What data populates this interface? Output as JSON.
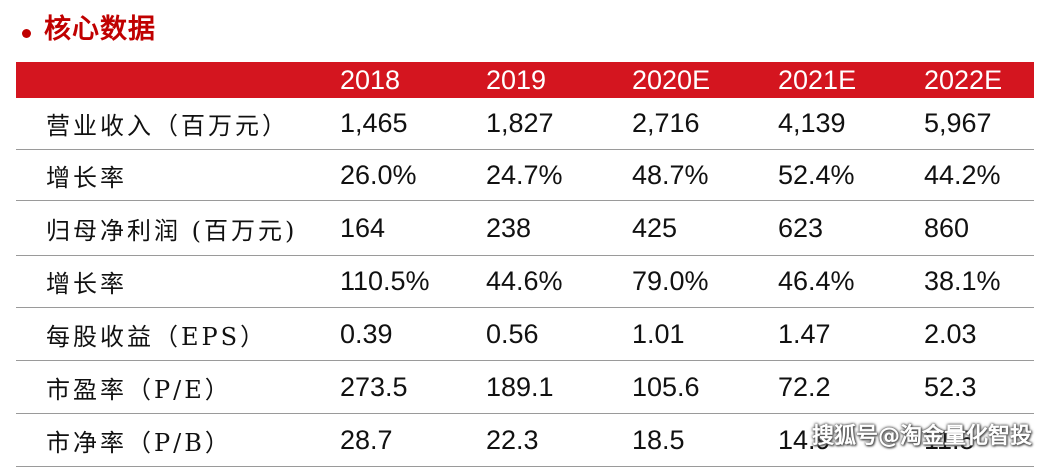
{
  "title": "核心数据",
  "table": {
    "headers": [
      "2018",
      "2019",
      "2020E",
      "2021E",
      "2022E"
    ],
    "rows": [
      {
        "label": "营业收入（百万元）",
        "values": [
          "1,465",
          "1,827",
          "2,716",
          "4,139",
          "5,967"
        ]
      },
      {
        "label": "增长率",
        "values": [
          "26.0%",
          "24.7%",
          "48.7%",
          "52.4%",
          "44.2%"
        ]
      },
      {
        "label": "归母净利润 (百万元)",
        "values": [
          "164",
          "238",
          "425",
          "623",
          "860"
        ]
      },
      {
        "label": "增长率",
        "values": [
          "110.5%",
          "44.6%",
          "79.0%",
          "46.4%",
          "38.1%"
        ]
      },
      {
        "label": "每股收益（EPS）",
        "values": [
          "0.39",
          "0.56",
          "1.01",
          "1.47",
          "2.03"
        ]
      },
      {
        "label": "市盈率（P/E）",
        "values": [
          "273.5",
          "189.1",
          "105.6",
          "72.2",
          "52.3"
        ]
      },
      {
        "label": "市净率（P/B）",
        "values": [
          "28.7",
          "22.3",
          "18.5",
          "14.9",
          "11.5"
        ]
      }
    ]
  },
  "watermark": "搜狐号@淘金量化智投",
  "colors": {
    "accent": "#c00000",
    "header_bg": "#d4151f",
    "header_text": "#ffffff",
    "divider": "#9a9a9a"
  }
}
